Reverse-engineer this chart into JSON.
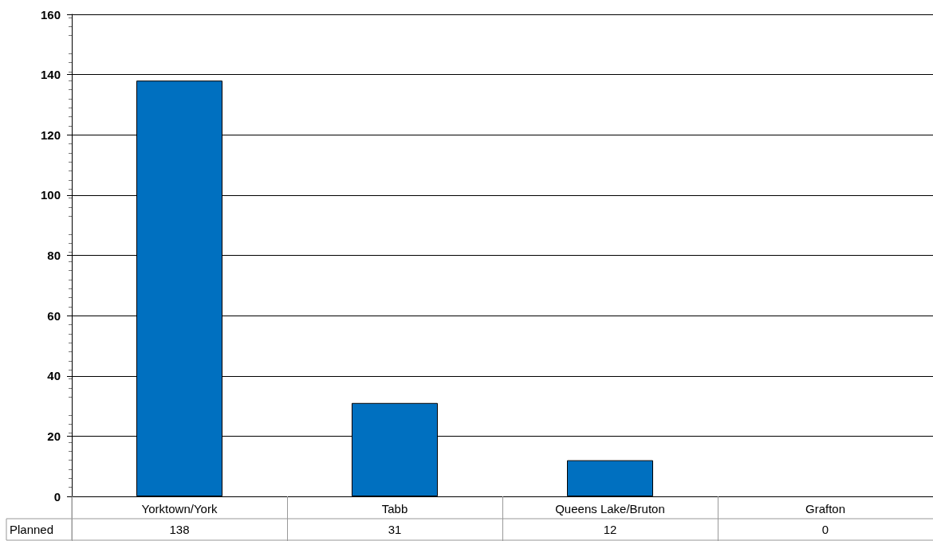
{
  "chart_data": {
    "type": "bar",
    "categories": [
      "Yorktown/York",
      "Tabb",
      "Queens Lake/Bruton",
      "Grafton"
    ],
    "series": [
      {
        "name": "Planned",
        "color": "#0070c0",
        "values": [
          138,
          31,
          12,
          0
        ]
      }
    ],
    "ylim": [
      0,
      160
    ],
    "yticks": [
      0,
      20,
      40,
      60,
      80,
      100,
      120,
      140,
      160
    ],
    "grid": "y",
    "data_labels": true,
    "legend": "bottom left"
  }
}
